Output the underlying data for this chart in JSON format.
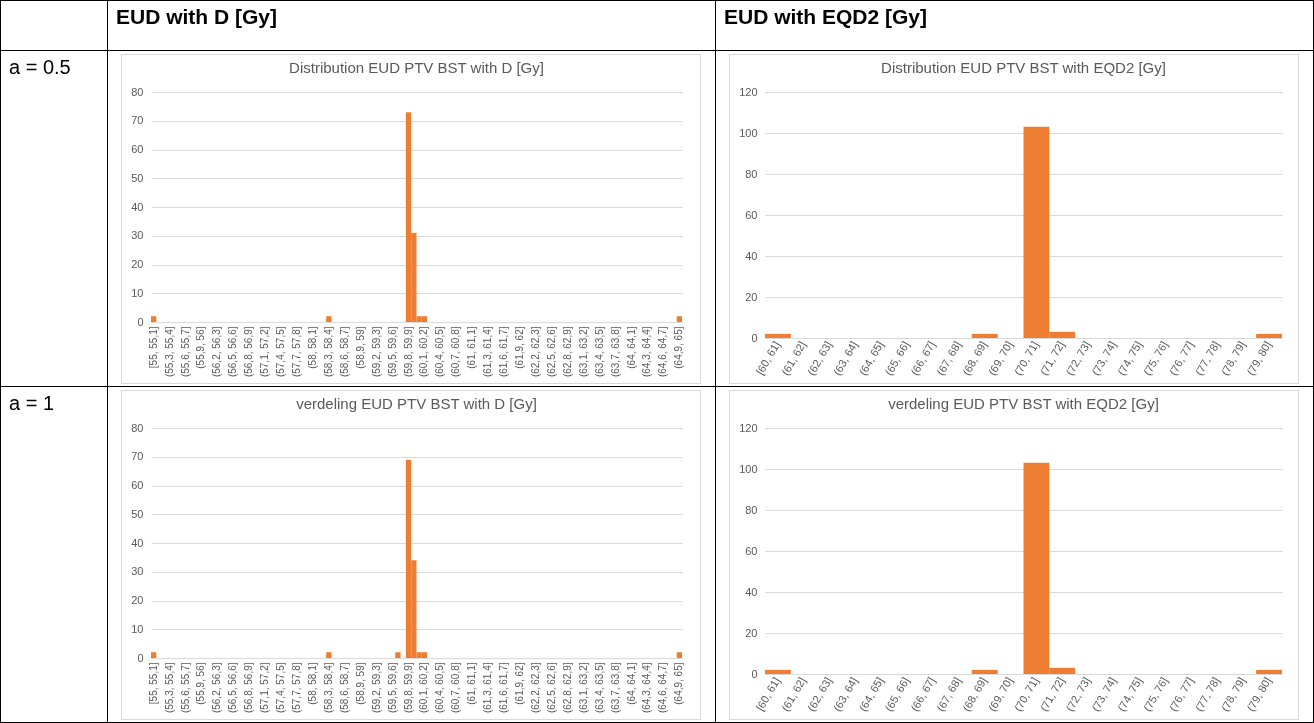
{
  "chart_data": [
    {
      "type": "bar",
      "title": "Distribution EUD PTV BST with D [Gy]",
      "annotations": [
        "EUD with D [Gy]",
        "a = 0.5"
      ],
      "categories": [
        "[55, 55,1]",
        null,
        null,
        "(55,3, 55,4]",
        null,
        null,
        "(55,6, 55,7]",
        null,
        null,
        "(55,9, 56]",
        null,
        null,
        "(56,2, 56,3]",
        null,
        null,
        "(56,5, 56,6]",
        null,
        null,
        "(56,8, 56,9]",
        null,
        null,
        "(57,1, 57,2]",
        null,
        null,
        "(57,4, 57,5]",
        null,
        null,
        "(57,7, 57,8]",
        null,
        null,
        "(58, 58,1]",
        null,
        null,
        "(58,3, 58,4]",
        null,
        null,
        "(58,6, 58,7]",
        null,
        null,
        "(58,9, 59]",
        null,
        null,
        "(59,2, 59,3]",
        null,
        null,
        "(59,5, 59,6]",
        null,
        null,
        "(59,8, 59,9]",
        null,
        null,
        "(60,1, 60,2]",
        null,
        null,
        "(60,4, 60,5]",
        null,
        null,
        "(60,7, 60,8]",
        null,
        null,
        "(61, 61,1]",
        null,
        null,
        "(61,3, 61,4]",
        null,
        null,
        "(61,6, 61,7]",
        null,
        null,
        "(61,9, 62]",
        null,
        null,
        "(62,2, 62,3]",
        null,
        null,
        "(62,5, 62,6]",
        null,
        null,
        "(62,8, 62,9]",
        null,
        null,
        "(63,1, 63,2]",
        null,
        null,
        "(63,4, 63,5]",
        null,
        null,
        "(63,7, 63,8]",
        null,
        null,
        "(64, 64,1]",
        null,
        null,
        "(64,3, 64,4]",
        null,
        null,
        "(64,6, 64,7]",
        null,
        null,
        "(64,9, 65]"
      ],
      "values": [
        2,
        0,
        0,
        0,
        0,
        0,
        0,
        0,
        0,
        0,
        0,
        0,
        0,
        0,
        0,
        0,
        0,
        0,
        0,
        0,
        0,
        0,
        0,
        0,
        0,
        0,
        0,
        0,
        0,
        0,
        0,
        0,
        0,
        2,
        0,
        0,
        0,
        0,
        0,
        0,
        0,
        0,
        0,
        0,
        0,
        0,
        0,
        0,
        73,
        31,
        2,
        2,
        0,
        0,
        0,
        0,
        0,
        0,
        0,
        0,
        0,
        0,
        0,
        0,
        0,
        0,
        0,
        0,
        0,
        0,
        0,
        0,
        0,
        0,
        0,
        0,
        0,
        0,
        0,
        0,
        0,
        0,
        0,
        0,
        0,
        0,
        0,
        0,
        0,
        0,
        0,
        0,
        0,
        0,
        0,
        0,
        0,
        0,
        0,
        2
      ],
      "color": "#ed7d31",
      "ylim": [
        0,
        80
      ],
      "yticks": [
        0,
        10,
        20,
        30,
        40,
        50,
        60,
        70,
        80
      ],
      "grid": "y"
    },
    {
      "type": "bar",
      "title": "Distribution EUD PTV BST with EQD2 [Gy]",
      "annotations": [
        "EUD with EQD2 [Gy]"
      ],
      "categories": [
        "[60, 61]",
        "(61, 62]",
        "(62, 63]",
        "(63, 64]",
        "(64, 65]",
        "(65, 66]",
        "(66, 67]",
        "(67, 68]",
        "(68, 69]",
        "(69, 70]",
        "(70, 71]",
        "(71, 72]",
        "(72, 73]",
        "(73, 74]",
        "(74, 75]",
        "(75, 76]",
        "(76, 77]",
        "(77, 78]",
        "(78, 79]",
        "(79, 80]"
      ],
      "values": [
        2,
        0,
        0,
        0,
        0,
        0,
        0,
        0,
        2,
        0,
        103,
        3,
        0,
        0,
        0,
        0,
        0,
        0,
        0,
        2
      ],
      "color": "#ed7d31",
      "ylim": [
        0,
        120
      ],
      "yticks": [
        0,
        20,
        40,
        60,
        80,
        100,
        120
      ],
      "grid": "y"
    },
    {
      "type": "bar",
      "title": "verdeling EUD PTV BST with D [Gy]",
      "annotations": [
        "a = 1"
      ],
      "categories": [
        "[55, 55,1]",
        null,
        null,
        "(55,3, 55,4]",
        null,
        null,
        "(55,6, 55,7]",
        null,
        null,
        "(55,9, 56]",
        null,
        null,
        "(56,2, 56,3]",
        null,
        null,
        "(56,5, 56,6]",
        null,
        null,
        "(56,8, 56,9]",
        null,
        null,
        "(57,1, 57,2]",
        null,
        null,
        "(57,4, 57,5]",
        null,
        null,
        "(57,7, 57,8]",
        null,
        null,
        "(58, 58,1]",
        null,
        null,
        "(58,3, 58,4]",
        null,
        null,
        "(58,6, 58,7]",
        null,
        null,
        "(58,9, 59]",
        null,
        null,
        "(59,2, 59,3]",
        null,
        null,
        "(59,5, 59,6]",
        null,
        null,
        "(59,8, 59,9]",
        null,
        null,
        "(60,1, 60,2]",
        null,
        null,
        "(60,4, 60,5]",
        null,
        null,
        "(60,7, 60,8]",
        null,
        null,
        "(61, 61,1]",
        null,
        null,
        "(61,3, 61,4]",
        null,
        null,
        "(61,6, 61,7]",
        null,
        null,
        "(61,9, 62]",
        null,
        null,
        "(62,2, 62,3]",
        null,
        null,
        "(62,5, 62,6]",
        null,
        null,
        "(62,8, 62,9]",
        null,
        null,
        "(63,1, 63,2]",
        null,
        null,
        "(63,4, 63,5]",
        null,
        null,
        "(63,7, 63,8]",
        null,
        null,
        "(64, 64,1]",
        null,
        null,
        "(64,3, 64,4]",
        null,
        null,
        "(64,6, 64,7]",
        null,
        null,
        "(64,9, 65]"
      ],
      "values": [
        2,
        0,
        0,
        0,
        0,
        0,
        0,
        0,
        0,
        0,
        0,
        0,
        0,
        0,
        0,
        0,
        0,
        0,
        0,
        0,
        0,
        0,
        0,
        0,
        0,
        0,
        0,
        0,
        0,
        0,
        0,
        0,
        0,
        2,
        0,
        0,
        0,
        0,
        0,
        0,
        0,
        0,
        0,
        0,
        0,
        0,
        2,
        0,
        69,
        34,
        2,
        2,
        0,
        0,
        0,
        0,
        0,
        0,
        0,
        0,
        0,
        0,
        0,
        0,
        0,
        0,
        0,
        0,
        0,
        0,
        0,
        0,
        0,
        0,
        0,
        0,
        0,
        0,
        0,
        0,
        0,
        0,
        0,
        0,
        0,
        0,
        0,
        0,
        0,
        0,
        0,
        0,
        0,
        0,
        0,
        0,
        0,
        0,
        0,
        2
      ],
      "color": "#ed7d31",
      "ylim": [
        0,
        80
      ],
      "yticks": [
        0,
        10,
        20,
        30,
        40,
        50,
        60,
        70,
        80
      ],
      "grid": "y"
    },
    {
      "type": "bar",
      "title": "verdeling EUD PTV BST with EQD2 [Gy]",
      "categories": [
        "[60, 61]",
        "(61, 62]",
        "(62, 63]",
        "(63, 64]",
        "(64, 65]",
        "(65, 66]",
        "(66, 67]",
        "(67, 68]",
        "(68, 69]",
        "(69, 70]",
        "(70, 71]",
        "(71, 72]",
        "(72, 73]",
        "(73, 74]",
        "(74, 75]",
        "(75, 76]",
        "(76, 77]",
        "(77, 78]",
        "(78, 79]",
        "(79, 80]"
      ],
      "values": [
        2,
        0,
        0,
        0,
        0,
        0,
        0,
        0,
        2,
        0,
        103,
        3,
        0,
        0,
        0,
        0,
        0,
        0,
        0,
        2
      ],
      "color": "#ed7d31",
      "ylim": [
        0,
        120
      ],
      "yticks": [
        0,
        20,
        40,
        60,
        80,
        100,
        120
      ],
      "grid": "y"
    }
  ]
}
